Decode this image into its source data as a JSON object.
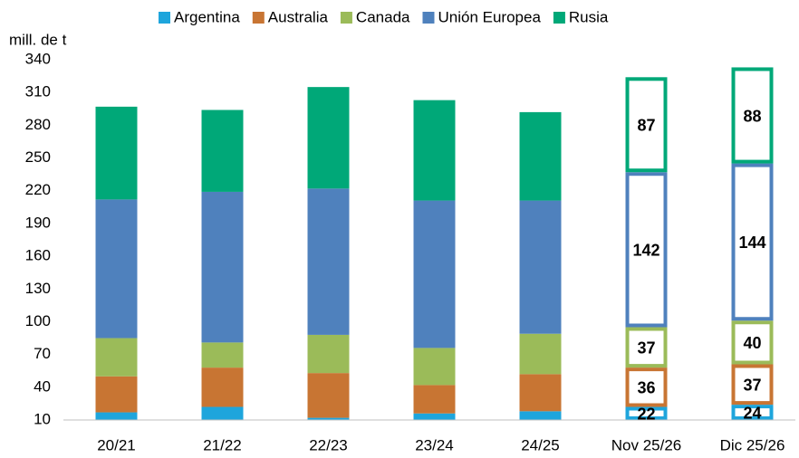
{
  "chart_data": {
    "type": "bar",
    "stacked": true,
    "y_axis_label": "mill. de t",
    "categories": [
      "20/21",
      "21/22",
      "22/23",
      "23/24",
      "24/25",
      "Nov 25/26",
      "Dic 25/26"
    ],
    "projected": [
      false,
      false,
      false,
      false,
      false,
      true,
      true
    ],
    "series": [
      {
        "name": "Argentina",
        "color": "#1ea5dc",
        "values": [
          17,
          22,
          12,
          16,
          18,
          22,
          24
        ]
      },
      {
        "name": "Australia",
        "color": "#c87533",
        "values": [
          33,
          36,
          41,
          26,
          34,
          36,
          37
        ]
      },
      {
        "name": "Canada",
        "color": "#9bbb59",
        "values": [
          35,
          23,
          35,
          34,
          37,
          37,
          40
        ]
      },
      {
        "name": "Unión Europea",
        "color": "#4f81bd",
        "values": [
          127,
          138,
          134,
          135,
          122,
          142,
          144
        ]
      },
      {
        "name": "Rusia",
        "color": "#00a878",
        "values": [
          85,
          75,
          93,
          92,
          81,
          87,
          88
        ]
      }
    ],
    "ylim": [
      10,
      340
    ],
    "yticks": [
      10,
      40,
      70,
      100,
      130,
      160,
      190,
      220,
      250,
      280,
      310,
      340
    ],
    "grid": false,
    "legend": "top"
  }
}
